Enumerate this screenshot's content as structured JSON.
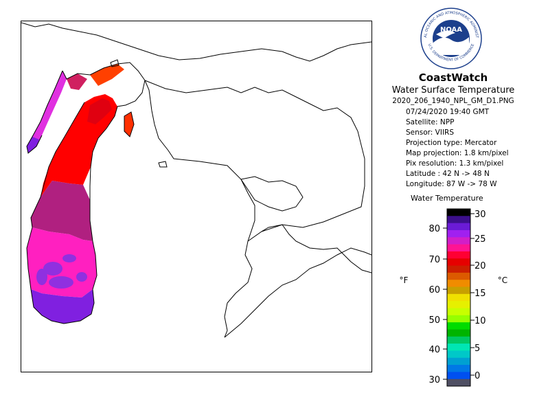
{
  "header": {
    "brand": "CoastWatch",
    "product": "Water Surface Temperature",
    "filename": "2020_206_1940_NPL_GM_D1.PNG"
  },
  "logo": {
    "agency": "NOAA",
    "ring_text": "NATIONAL OCEANIC AND ATMOSPHERIC ADMINISTRATION",
    "ring_text_bottom": "U.S. DEPARTMENT OF COMMERCE"
  },
  "metadata": [
    {
      "id": "date",
      "text": "07/24/2020    19:40 GMT"
    },
    {
      "id": "satellite",
      "text": "Satellite: NPP"
    },
    {
      "id": "sensor",
      "text": "Sensor: VIIRS"
    },
    {
      "id": "projection-type",
      "text": "Projection type:  Mercator"
    },
    {
      "id": "map-projection",
      "text": "Map projection: 1.8 km/pixel"
    },
    {
      "id": "pix-resolution",
      "text": "Pix resolution: 1.3 km/pixel"
    },
    {
      "id": "latitude",
      "text": "Latitude : 42 N -> 48 N"
    },
    {
      "id": "longitude",
      "text": "Longitude: 87 W -> 78 W"
    }
  ],
  "legend": {
    "title": "Water Temperature",
    "unit_left": "°F",
    "unit_right": "°C",
    "fahrenheit_ticks": [
      "80",
      "70",
      "60",
      "50",
      "40",
      "30"
    ],
    "celsius_ticks": [
      "30",
      "25",
      "20",
      "15",
      "10",
      "5",
      "0"
    ],
    "colors_top_to_bottom": [
      "#000000",
      "#3c0f8c",
      "#6a1bd6",
      "#a020f0",
      "#d21ec8",
      "#ff1493",
      "#ff0033",
      "#e60000",
      "#cc1e00",
      "#dc5a00",
      "#f08c00",
      "#c8a000",
      "#f0e100",
      "#e6f000",
      "#c8ff00",
      "#96ff00",
      "#00dc00",
      "#00b400",
      "#00c864",
      "#00e6b4",
      "#00c8c8",
      "#00a0d2",
      "#0078e6",
      "#0050f0",
      "#505064"
    ]
  },
  "map": {
    "region": "Lake Michigan",
    "temperature_palette": {
      "warmest_north": "#ff0000",
      "north_edge": "#ff4000",
      "band_mid": "#b02080",
      "mid_pink": "#ff20c0",
      "south_magenta": "#e030e0",
      "south_purple": "#8020e0"
    }
  }
}
